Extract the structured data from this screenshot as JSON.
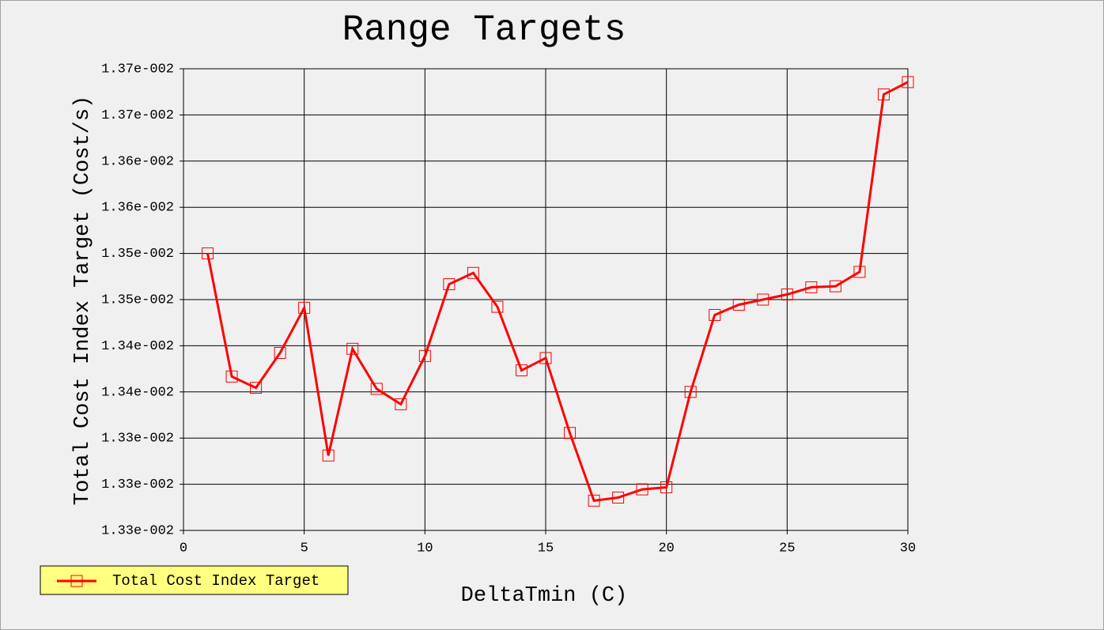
{
  "chart_data": {
    "type": "line",
    "title": "Range Targets",
    "x_label": "DeltaTmin (C)",
    "y_label": "Total Cost Index Target (Cost/s)",
    "x": [
      1,
      2,
      3,
      4,
      5,
      6,
      7,
      8,
      9,
      10,
      11,
      12,
      13,
      14,
      15,
      16,
      17,
      18,
      19,
      20,
      21,
      22,
      23,
      24,
      25,
      26,
      27,
      28,
      29,
      30
    ],
    "series": [
      {
        "name": "Total Cost Index Target",
        "color": "#ff0000",
        "values": [
          0.013525,
          0.013405,
          0.013394,
          0.013428,
          0.013472,
          0.013328,
          0.013432,
          0.013393,
          0.013378,
          0.013425,
          0.013495,
          0.013506,
          0.013473,
          0.013411,
          0.013423,
          0.01335,
          0.013284,
          0.013287,
          0.013295,
          0.013297,
          0.01339,
          0.013465,
          0.013475,
          0.01348,
          0.013485,
          0.013492,
          0.013493,
          0.013507,
          0.01368,
          0.013692
        ]
      }
    ],
    "xlim": [
      0,
      30
    ],
    "xticks": [
      0,
      5,
      10,
      15,
      20,
      25,
      30
    ],
    "ylim": [
      0.013255,
      0.013705
    ],
    "yticks": [
      {
        "value": 0.013255,
        "label": "1.33e-002"
      },
      {
        "value": 0.0133,
        "label": "1.33e-002"
      },
      {
        "value": 0.013345,
        "label": "1.33e-002"
      },
      {
        "value": 0.01339,
        "label": "1.34e-002"
      },
      {
        "value": 0.013435,
        "label": "1.34e-002"
      },
      {
        "value": 0.01348,
        "label": "1.35e-002"
      },
      {
        "value": 0.013525,
        "label": "1.35e-002"
      },
      {
        "value": 0.01357,
        "label": "1.36e-002"
      },
      {
        "value": 0.013615,
        "label": "1.36e-002"
      },
      {
        "value": 0.01366,
        "label": "1.37e-002"
      },
      {
        "value": 0.013705,
        "label": "1.37e-002"
      }
    ],
    "grid": true,
    "legend": "bottom-left"
  }
}
